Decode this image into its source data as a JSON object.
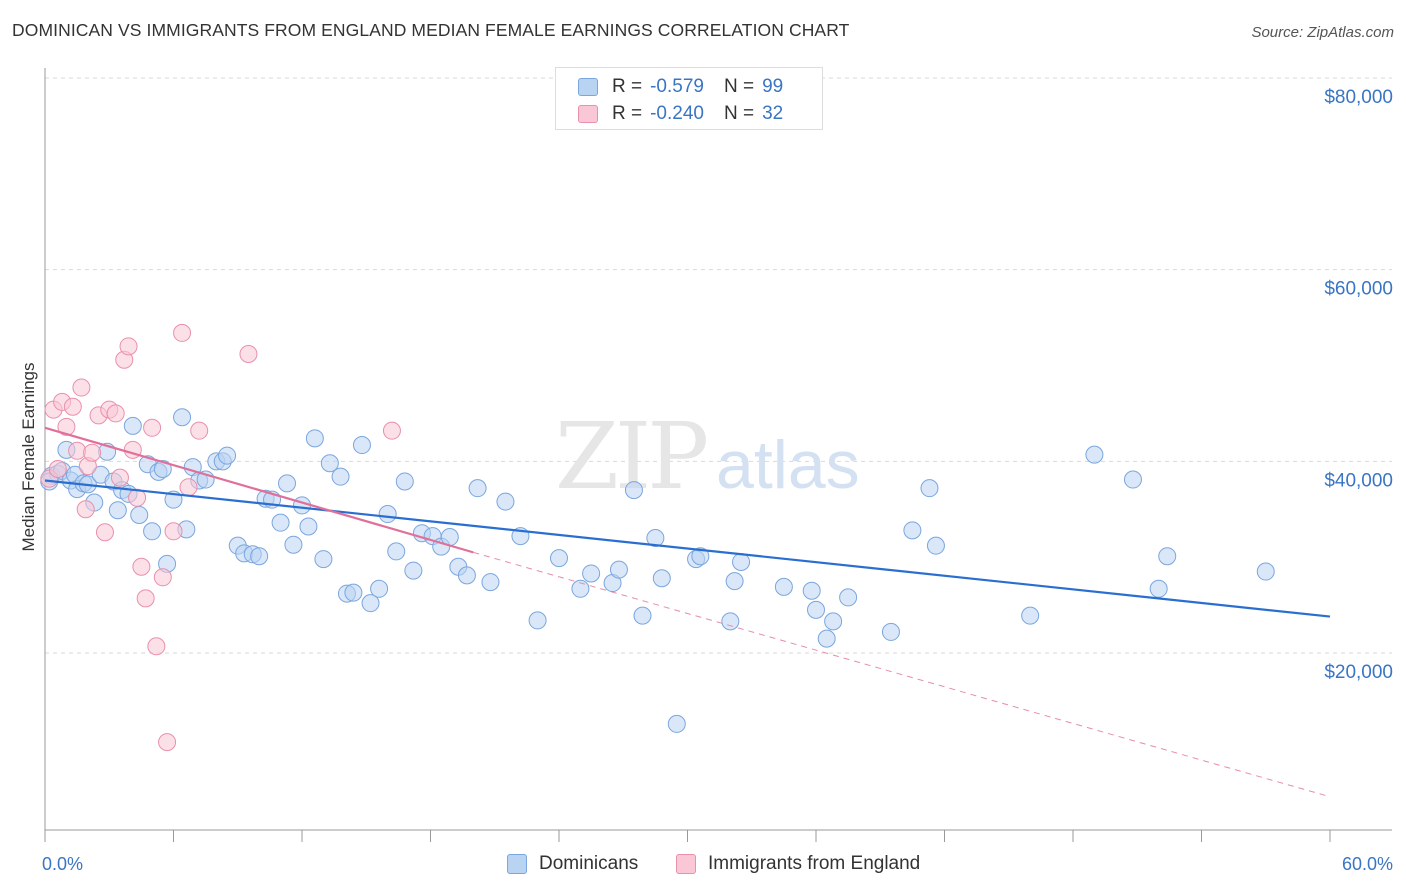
{
  "title": "DOMINICAN VS IMMIGRANTS FROM ENGLAND MEDIAN FEMALE EARNINGS CORRELATION CHART",
  "source": "Source: ZipAtlas.com",
  "watermark": {
    "zip": "ZIP",
    "atlas": "atlas"
  },
  "colors": {
    "blue_fill": "#b9d3f3",
    "blue_stroke": "#7aa6de",
    "blue_line": "#2a6fd0",
    "pink_fill": "#f9c7d5",
    "pink_stroke": "#e990ad",
    "pink_line": "#e0709a",
    "axis_label": "#3a75c4",
    "grid": "#d9d9d9"
  },
  "legend": {
    "series1": {
      "r_label": "R =",
      "r_value": "-0.579",
      "n_label": "N =",
      "n_value": "99"
    },
    "series2": {
      "r_label": "R =",
      "r_value": "-0.240",
      "n_label": "N =",
      "n_value": "32"
    }
  },
  "chart_data": {
    "type": "scatter",
    "title": "DOMINICAN VS IMMIGRANTS FROM ENGLAND MEDIAN FEMALE EARNINGS CORRELATION CHART",
    "xlabel": "",
    "ylabel": "Median Female Earnings",
    "xlim": [
      0,
      60
    ],
    "ylim": [
      0,
      82000
    ],
    "x_tick_labels": [
      "0.0%",
      "60.0%"
    ],
    "y_ticks": [
      20000,
      40000,
      60000,
      80000
    ],
    "y_tick_labels": [
      "$20,000",
      "$40,000",
      "$60,000",
      "$80,000"
    ],
    "grid": true,
    "legend_position": "top-center",
    "series": [
      {
        "name": "Dominicans",
        "color": "#b9d3f3",
        "trend": {
          "x": [
            0,
            60
          ],
          "y": [
            38000,
            23800
          ]
        },
        "points": [
          [
            0.3,
            38500
          ],
          [
            0.6,
            38700
          ],
          [
            0.8,
            39000
          ],
          [
            1.0,
            41200
          ],
          [
            1.2,
            38000
          ],
          [
            1.4,
            38600
          ],
          [
            1.5,
            37100
          ],
          [
            1.8,
            37700
          ],
          [
            2.0,
            37600
          ],
          [
            2.3,
            35700
          ],
          [
            2.6,
            38600
          ],
          [
            2.9,
            41000
          ],
          [
            3.2,
            37900
          ],
          [
            3.4,
            34900
          ],
          [
            3.6,
            37000
          ],
          [
            3.9,
            36600
          ],
          [
            4.1,
            43700
          ],
          [
            4.4,
            34400
          ],
          [
            4.8,
            39700
          ],
          [
            5.0,
            32700
          ],
          [
            5.3,
            38900
          ],
          [
            5.5,
            39200
          ],
          [
            5.7,
            29300
          ],
          [
            6.0,
            36000
          ],
          [
            6.4,
            44600
          ],
          [
            6.6,
            32900
          ],
          [
            6.9,
            39400
          ],
          [
            7.2,
            38000
          ],
          [
            7.5,
            38100
          ],
          [
            8.0,
            40000
          ],
          [
            8.3,
            40000
          ],
          [
            8.5,
            40600
          ],
          [
            9.0,
            31200
          ],
          [
            9.3,
            30400
          ],
          [
            9.7,
            30300
          ],
          [
            10.0,
            30100
          ],
          [
            10.3,
            36100
          ],
          [
            10.6,
            36000
          ],
          [
            11.0,
            33600
          ],
          [
            11.3,
            37700
          ],
          [
            11.6,
            31300
          ],
          [
            12.0,
            35400
          ],
          [
            12.3,
            33200
          ],
          [
            12.6,
            42400
          ],
          [
            13.0,
            29800
          ],
          [
            13.3,
            39800
          ],
          [
            13.8,
            38400
          ],
          [
            14.1,
            26200
          ],
          [
            14.4,
            26300
          ],
          [
            14.8,
            41700
          ],
          [
            15.2,
            25200
          ],
          [
            15.6,
            26700
          ],
          [
            16.0,
            34500
          ],
          [
            16.4,
            30600
          ],
          [
            16.8,
            37900
          ],
          [
            17.2,
            28600
          ],
          [
            17.6,
            32500
          ],
          [
            18.1,
            32200
          ],
          [
            18.5,
            31100
          ],
          [
            18.9,
            32100
          ],
          [
            19.3,
            29000
          ],
          [
            19.7,
            28100
          ],
          [
            20.2,
            37200
          ],
          [
            20.8,
            27400
          ],
          [
            21.5,
            35800
          ],
          [
            22.2,
            32200
          ],
          [
            23.0,
            23400
          ],
          [
            24.0,
            29900
          ],
          [
            25.0,
            26700
          ],
          [
            25.5,
            28300
          ],
          [
            26.5,
            27300
          ],
          [
            26.8,
            28700
          ],
          [
            27.5,
            37000
          ],
          [
            27.9,
            23900
          ],
          [
            28.5,
            32000
          ],
          [
            28.8,
            27800
          ],
          [
            29.5,
            12600
          ],
          [
            30.4,
            29800
          ],
          [
            30.6,
            30100
          ],
          [
            32.0,
            23300
          ],
          [
            32.2,
            27500
          ],
          [
            32.5,
            29500
          ],
          [
            34.5,
            26900
          ],
          [
            35.8,
            26500
          ],
          [
            36.0,
            24500
          ],
          [
            36.5,
            21500
          ],
          [
            36.8,
            23300
          ],
          [
            37.5,
            25800
          ],
          [
            39.5,
            22200
          ],
          [
            40.5,
            32800
          ],
          [
            41.3,
            37200
          ],
          [
            41.6,
            31200
          ],
          [
            46.0,
            23900
          ],
          [
            49.0,
            40700
          ],
          [
            50.8,
            38100
          ],
          [
            52.0,
            26700
          ],
          [
            52.4,
            30100
          ],
          [
            57.0,
            28500
          ],
          [
            0.2,
            37900
          ]
        ]
      },
      {
        "name": "Immigrants from England",
        "color": "#f9c7d5",
        "trend": {
          "x": [
            0,
            20
          ],
          "y": [
            43500,
            30500
          ]
        },
        "dashed_extension": {
          "x": [
            20,
            60
          ],
          "y": [
            30500,
            5000
          ]
        },
        "points": [
          [
            0.2,
            38200
          ],
          [
            0.4,
            45400
          ],
          [
            0.6,
            39200
          ],
          [
            0.8,
            46200
          ],
          [
            1.0,
            43600
          ],
          [
            1.3,
            45700
          ],
          [
            1.5,
            41100
          ],
          [
            1.7,
            47700
          ],
          [
            1.9,
            35000
          ],
          [
            2.0,
            39500
          ],
          [
            2.2,
            40900
          ],
          [
            2.5,
            44800
          ],
          [
            2.8,
            32600
          ],
          [
            3.0,
            45400
          ],
          [
            3.3,
            45000
          ],
          [
            3.5,
            38300
          ],
          [
            3.7,
            50600
          ],
          [
            3.9,
            52000
          ],
          [
            4.1,
            41200
          ],
          [
            4.3,
            36200
          ],
          [
            4.5,
            29000
          ],
          [
            4.7,
            25700
          ],
          [
            5.0,
            43500
          ],
          [
            5.2,
            20700
          ],
          [
            5.5,
            27900
          ],
          [
            5.7,
            10700
          ],
          [
            6.0,
            32700
          ],
          [
            6.4,
            53400
          ],
          [
            6.7,
            37300
          ],
          [
            7.2,
            43200
          ],
          [
            9.5,
            51200
          ],
          [
            16.2,
            43200
          ]
        ]
      }
    ]
  },
  "bottom_legend": [
    "Dominicans",
    "Immigrants from England"
  ]
}
